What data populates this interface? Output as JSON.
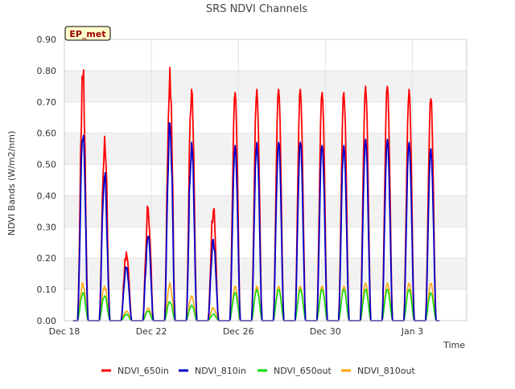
{
  "chart_data": {
    "type": "line",
    "title": "SRS NDVI Channels",
    "xlabel": "Time",
    "ylabel": "NDVI Bands (W/m2/nm)",
    "annotation": "EP_met",
    "ylim": [
      0,
      0.9
    ],
    "xlim": [
      0,
      18.5
    ],
    "yticks": [
      {
        "v": 0.0,
        "label": "0.00"
      },
      {
        "v": 0.1,
        "label": "0.10"
      },
      {
        "v": 0.2,
        "label": "0.20"
      },
      {
        "v": 0.3,
        "label": "0.30"
      },
      {
        "v": 0.4,
        "label": "0.40"
      },
      {
        "v": 0.5,
        "label": "0.50"
      },
      {
        "v": 0.6,
        "label": "0.60"
      },
      {
        "v": 0.7,
        "label": "0.70"
      },
      {
        "v": 0.8,
        "label": "0.80"
      },
      {
        "v": 0.9,
        "label": "0.90"
      }
    ],
    "xticks": [
      {
        "v": 0,
        "label": "Dec 18"
      },
      {
        "v": 4,
        "label": "Dec 22"
      },
      {
        "v": 8,
        "label": "Dec 26"
      },
      {
        "v": 12,
        "label": "Dec 30"
      },
      {
        "v": 16,
        "label": "Jan 3"
      }
    ],
    "days": [
      0,
      1,
      2,
      3,
      4,
      5,
      6,
      7,
      8,
      9,
      10,
      11,
      12,
      13,
      14,
      15,
      16,
      17
    ],
    "series": [
      {
        "name": "NDVI_650in",
        "color": "#ff0000",
        "daily_peak": [
          0.77,
          0.59,
          0.22,
          0.36,
          0.81,
          0.74,
          0.35,
          0.73,
          0.74,
          0.74,
          0.74,
          0.73,
          0.73,
          0.75,
          0.75,
          0.74,
          0.71,
          0.0
        ]
      },
      {
        "name": "NDVI_810in",
        "color": "#0000cc",
        "daily_peak": [
          0.58,
          0.46,
          0.17,
          0.27,
          0.63,
          0.57,
          0.26,
          0.56,
          0.57,
          0.57,
          0.57,
          0.56,
          0.56,
          0.58,
          0.58,
          0.57,
          0.55,
          0.0
        ]
      },
      {
        "name": "NDVI_650out",
        "color": "#00dd00",
        "daily_peak": [
          0.09,
          0.08,
          0.02,
          0.03,
          0.06,
          0.05,
          0.02,
          0.09,
          0.1,
          0.1,
          0.1,
          0.1,
          0.1,
          0.1,
          0.1,
          0.1,
          0.09,
          0.0
        ]
      },
      {
        "name": "NDVI_810out",
        "color": "#ffa500",
        "daily_peak": [
          0.12,
          0.11,
          0.03,
          0.04,
          0.12,
          0.08,
          0.04,
          0.11,
          0.11,
          0.11,
          0.11,
          0.11,
          0.11,
          0.12,
          0.12,
          0.12,
          0.12,
          0.0
        ]
      }
    ]
  }
}
